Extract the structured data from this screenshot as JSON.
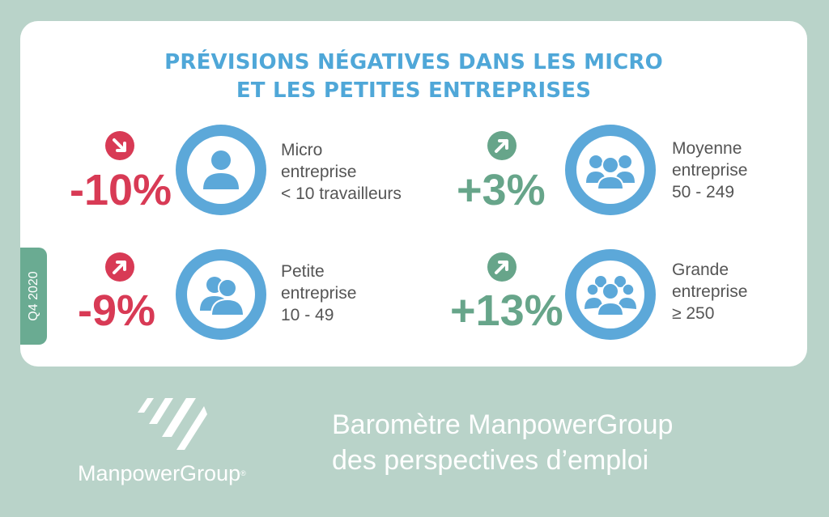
{
  "title": {
    "line1": "PRÉVISIONS NÉGATIVES DANS LES MICRO",
    "line2": "ET LES PETITES ENTREPRISES"
  },
  "quarter": "Q4 2020",
  "colors": {
    "background": "#b9d3c9",
    "title": "#4fa7d8",
    "negative": "#d83a55",
    "positive": "#67a58a",
    "icon_ring": "#5ca8d9",
    "quarter_tab": "#6aab92"
  },
  "segments": [
    {
      "id": "micro",
      "value": "-10%",
      "trend": "down",
      "icon": "single-person-icon",
      "label_lines": [
        "Micro",
        "entreprise",
        "< 10 travailleurs"
      ]
    },
    {
      "id": "petite",
      "value": "-9%",
      "trend": "up",
      "icon": "two-people-icon",
      "label_lines": [
        "Petite",
        "entreprise",
        "10 - 49"
      ]
    },
    {
      "id": "moyenne",
      "value": "+3%",
      "trend": "up",
      "icon": "group-icon",
      "label_lines": [
        "Moyenne",
        "entreprise",
        "50 - 249"
      ]
    },
    {
      "id": "grande",
      "value": "+13%",
      "trend": "up",
      "icon": "large-group-icon",
      "label_lines": [
        "Grande",
        "entreprise",
        "≥ 250"
      ]
    }
  ],
  "footer": {
    "brand": "ManpowerGroup",
    "registered": "®",
    "barometer_line1": "Baromètre ManpowerGroup",
    "barometer_line2": "des perspectives d’emploi"
  }
}
